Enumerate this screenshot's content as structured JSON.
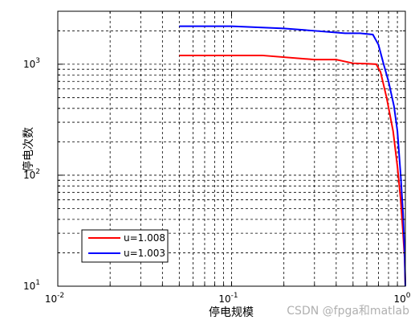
{
  "chart_data": {
    "type": "line",
    "title": "",
    "xlabel": "停电规模",
    "ylabel": "停电次数",
    "x_scale": "log",
    "y_scale": "log",
    "xlim": [
      0.01,
      1
    ],
    "ylim": [
      10,
      3000
    ],
    "grid": true,
    "legend_position": "bottom-left",
    "x_ticks": [
      {
        "value": 0.01,
        "base": "10",
        "exp": "-2"
      },
      {
        "value": 0.1,
        "base": "10",
        "exp": "-1"
      },
      {
        "value": 1,
        "base": "10",
        "exp": "0"
      }
    ],
    "y_ticks": [
      {
        "value": 10,
        "base": "10",
        "exp": "1"
      },
      {
        "value": 100,
        "base": "10",
        "exp": "2"
      },
      {
        "value": 1000,
        "base": "10",
        "exp": "3"
      }
    ],
    "series": [
      {
        "name": "u=1.008",
        "color": "#ff0000",
        "x": [
          0.05,
          0.15,
          0.3,
          0.4,
          0.5,
          0.6,
          0.68,
          0.72,
          0.78,
          0.85,
          0.9,
          0.94,
          0.97,
          0.99,
          1.0
        ],
        "y": [
          1200,
          1200,
          1100,
          1100,
          1020,
          1010,
          1000,
          850,
          500,
          250,
          120,
          60,
          30,
          18,
          10
        ]
      },
      {
        "name": "u=1.003",
        "color": "#0000ff",
        "x": [
          0.05,
          0.1,
          0.2,
          0.3,
          0.45,
          0.55,
          0.65,
          0.7,
          0.75,
          0.8,
          0.86,
          0.9,
          0.94,
          0.97,
          0.99,
          1.0
        ],
        "y": [
          2200,
          2200,
          2100,
          2000,
          1900,
          1900,
          1850,
          1500,
          1000,
          700,
          420,
          250,
          100,
          45,
          20,
          10
        ]
      }
    ]
  },
  "watermark": "CSDN @fpga和matlab"
}
